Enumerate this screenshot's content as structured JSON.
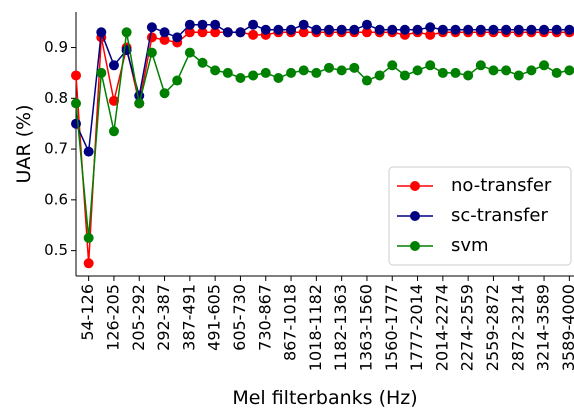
{
  "chart_data": {
    "type": "line",
    "xlabel": "Mel filterbanks (Hz)",
    "ylabel": "UAR (%)",
    "categories": [
      null,
      "54-126",
      null,
      "126-205",
      null,
      "205-292",
      null,
      "292-387",
      null,
      "387-491",
      null,
      "491-605",
      null,
      "605-730",
      null,
      "730-867",
      null,
      "867-1018",
      null,
      "1018-1182",
      null,
      "1182-1363",
      null,
      "1363-1560",
      null,
      "1560-1777",
      null,
      "1777-2014",
      null,
      "2014-2274",
      null,
      "2274-2559",
      null,
      "2559-2872",
      null,
      "2872-3214",
      null,
      "3214-3589",
      null,
      "3589-4000"
    ],
    "series": [
      {
        "name": "no-transfer",
        "color": "#ff0000",
        "values": [
          0.845,
          0.475,
          0.92,
          0.795,
          0.9,
          0.79,
          0.92,
          0.915,
          0.91,
          0.93,
          0.93,
          0.93,
          0.93,
          0.93,
          0.925,
          0.925,
          0.93,
          0.93,
          0.93,
          0.93,
          0.93,
          0.93,
          0.93,
          0.93,
          0.93,
          0.93,
          0.925,
          0.93,
          0.925,
          0.93,
          0.93,
          0.93,
          0.93,
          0.93,
          0.93,
          0.93,
          0.93,
          0.93,
          0.93,
          0.93
        ]
      },
      {
        "name": "sc-transfer",
        "color": "#000080",
        "values": [
          0.75,
          0.695,
          0.93,
          0.865,
          0.895,
          0.805,
          0.94,
          0.93,
          0.92,
          0.945,
          0.945,
          0.945,
          0.93,
          0.93,
          0.945,
          0.935,
          0.935,
          0.935,
          0.945,
          0.935,
          0.935,
          0.935,
          0.935,
          0.945,
          0.935,
          0.935,
          0.935,
          0.935,
          0.94,
          0.935,
          0.935,
          0.935,
          0.935,
          0.935,
          0.935,
          0.935,
          0.935,
          0.935,
          0.935,
          0.935
        ]
      },
      {
        "name": "svm",
        "color": "#008000",
        "values": [
          0.79,
          0.525,
          0.85,
          0.735,
          0.93,
          0.79,
          0.89,
          0.81,
          0.835,
          0.89,
          0.87,
          0.855,
          0.85,
          0.84,
          0.845,
          0.85,
          0.84,
          0.85,
          0.855,
          0.85,
          0.86,
          0.855,
          0.86,
          0.835,
          0.845,
          0.865,
          0.845,
          0.855,
          0.865,
          0.85,
          0.85,
          0.845,
          0.865,
          0.855,
          0.855,
          0.845,
          0.855,
          0.865,
          0.85,
          0.855
        ]
      }
    ],
    "ylim": [
      0.45,
      0.97
    ],
    "yticks": [
      0.5,
      0.6,
      0.7,
      0.8,
      0.9
    ],
    "legend": "lower right",
    "grid": false
  }
}
